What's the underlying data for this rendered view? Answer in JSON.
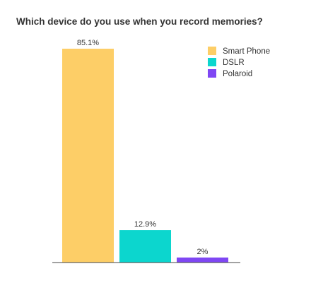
{
  "chart_data": {
    "type": "bar",
    "title": "Which device do you use when you record memories?",
    "categories": [
      "Smart Phone",
      "DSLR",
      "Polaroid"
    ],
    "values": [
      85.1,
      12.9,
      2
    ],
    "value_labels": [
      "85.1%",
      "12.9%",
      "2%"
    ],
    "unit": "%",
    "colors": [
      "#FDCE67",
      "#0CD6CE",
      "#7F47F3"
    ],
    "ylim": [
      0,
      85.1
    ],
    "grid": false,
    "legend": {
      "position": "top-right",
      "entries": [
        "Smart Phone",
        "DSLR",
        "Polaroid"
      ]
    }
  }
}
